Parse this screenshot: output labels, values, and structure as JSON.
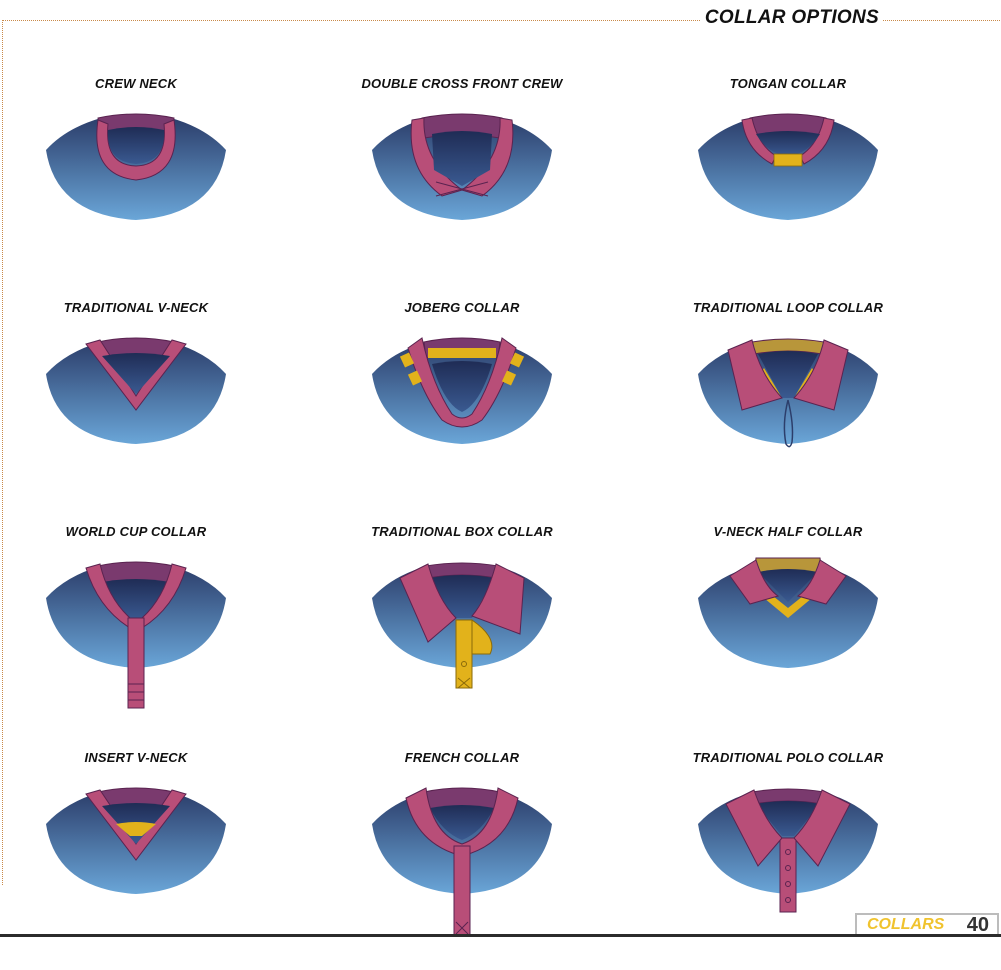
{
  "page": {
    "title": "COLLAR OPTIONS",
    "footer_section": "COLLARS",
    "footer_page": "40"
  },
  "colors": {
    "shirt_top": "#2c3e6b",
    "shirt_bottom": "#6aa6d8",
    "collar_pink": "#b84e78",
    "collar_band": "#7a3a6e",
    "accent_gold": "#e2b21b",
    "outline": "#5a2350"
  },
  "collars": [
    {
      "label": "CREW NECK",
      "icon": "crew-neck-icon"
    },
    {
      "label": "DOUBLE CROSS FRONT CREW",
      "icon": "double-cross-front-crew-icon"
    },
    {
      "label": "TONGAN COLLAR",
      "icon": "tongan-collar-icon"
    },
    {
      "label": "TRADITIONAL V-NECK",
      "icon": "traditional-v-neck-icon"
    },
    {
      "label": "JOBERG COLLAR",
      "icon": "joberg-collar-icon"
    },
    {
      "label": "TRADITIONAL LOOP COLLAR",
      "icon": "traditional-loop-collar-icon"
    },
    {
      "label": "WORLD CUP COLLAR",
      "icon": "world-cup-collar-icon"
    },
    {
      "label": "TRADITIONAL BOX COLLAR",
      "icon": "traditional-box-collar-icon"
    },
    {
      "label": "V-NECK HALF COLLAR",
      "icon": "v-neck-half-collar-icon"
    },
    {
      "label": "INSERT V-NECK",
      "icon": "insert-v-neck-icon"
    },
    {
      "label": "FRENCH COLLAR",
      "icon": "french-collar-icon"
    },
    {
      "label": "TRADITIONAL POLO COLLAR",
      "icon": "traditional-polo-collar-icon"
    }
  ]
}
